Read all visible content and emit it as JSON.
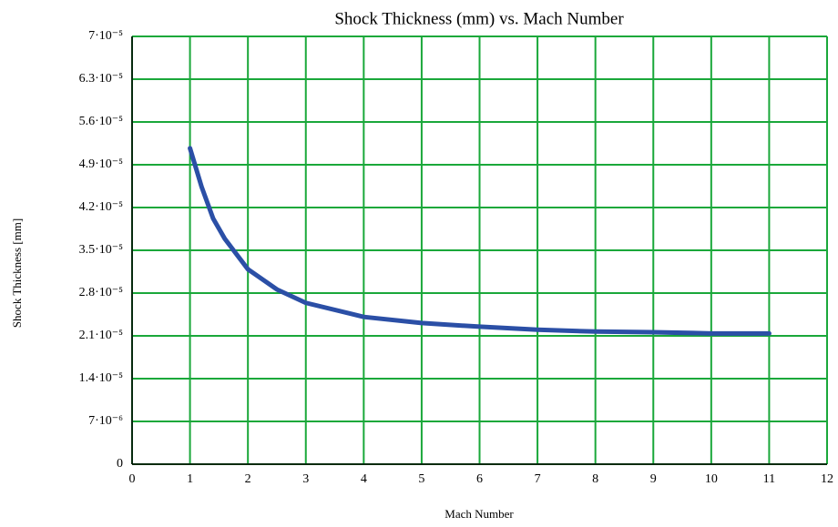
{
  "chart_data": {
    "type": "line",
    "title": "Shock Thickness (mm) vs. Mach Number",
    "x_label": "Mach Number",
    "y_label": "Shock Thickness [mm]",
    "xlim": [
      0,
      12
    ],
    "xticks": [
      0,
      1,
      2,
      3,
      4,
      5,
      6,
      7,
      8,
      9,
      10,
      11,
      12
    ],
    "ylim": [
      0,
      7e-05
    ],
    "yticks": [
      0,
      {
        "value": 7e-06,
        "label": "7·10⁻⁶"
      },
      {
        "value": 1.4e-05,
        "label": "1.4·10⁻⁵"
      },
      {
        "value": 2.1e-05,
        "label": "2.1·10⁻⁵"
      },
      {
        "value": 2.8e-05,
        "label": "2.8·10⁻⁵"
      },
      {
        "value": 3.5e-05,
        "label": "3.5·10⁻⁵"
      },
      {
        "value": 4.2e-05,
        "label": "4.2·10⁻⁵"
      },
      {
        "value": 4.9e-05,
        "label": "4.9·10⁻⁵"
      },
      {
        "value": 5.6e-05,
        "label": "5.6·10⁻⁵"
      },
      {
        "value": 6.3e-05,
        "label": "6.3·10⁻⁵"
      },
      {
        "value": 7e-05,
        "label": "7·10⁻⁵"
      }
    ],
    "grid": true,
    "grid_color": "#1aa83a",
    "x": [
      1,
      1.2,
      1.4,
      1.6,
      2,
      2.5,
      3,
      4,
      5,
      6,
      7,
      8,
      9,
      10,
      11
    ],
    "series": [
      {
        "color": "#2b4fa6",
        "values": [
          5.17e-05,
          4.54e-05,
          4.02e-05,
          3.69e-05,
          3.19e-05,
          2.86e-05,
          2.64e-05,
          2.41e-05,
          2.31e-05,
          2.25e-05,
          2.2e-05,
          2.17e-05,
          2.16e-05,
          2.14e-05,
          2.14e-05
        ]
      }
    ]
  }
}
